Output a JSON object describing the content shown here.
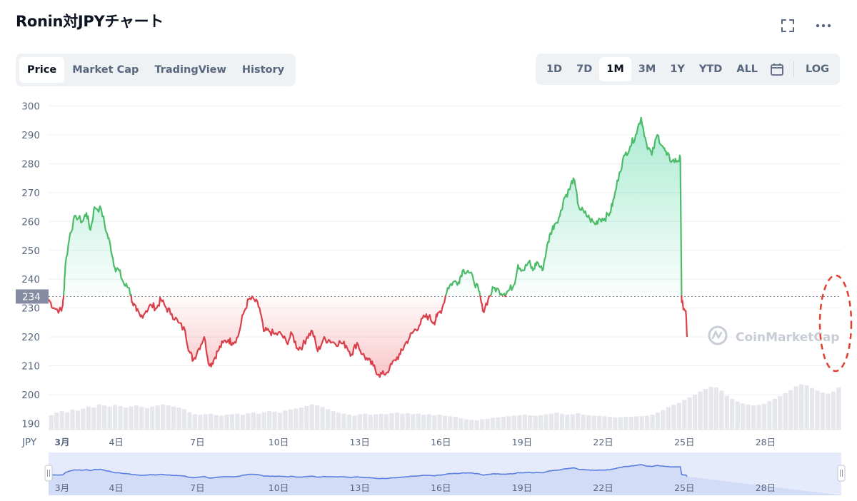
{
  "title": "Ronin対JPYチャート",
  "toolbar": {
    "fullscreen_icon": "expand-icon",
    "more_icon": "more-dots-icon"
  },
  "tabs": [
    {
      "label": "Price",
      "active": true
    },
    {
      "label": "Market Cap",
      "active": false
    },
    {
      "label": "TradingView",
      "active": false
    },
    {
      "label": "History",
      "active": false
    }
  ],
  "ranges": [
    {
      "label": "1D",
      "active": false
    },
    {
      "label": "7D",
      "active": false
    },
    {
      "label": "1M",
      "active": true
    },
    {
      "label": "3M",
      "active": false
    },
    {
      "label": "1Y",
      "active": false
    },
    {
      "label": "YTD",
      "active": false
    },
    {
      "label": "ALL",
      "active": false
    }
  ],
  "calendar_icon": "calendar-icon",
  "log_label": "LOG",
  "watermark": "CoinMarketCap",
  "colors": {
    "up": "#16c784",
    "down": "#ea3943",
    "line_up": "#4cbb6a",
    "line_down": "#d8404a",
    "nav_line": "#5b7fe0",
    "nav_fill": "#e6ebfb",
    "marker": "#e0402e",
    "baseline_label_bg": "#858ca2"
  },
  "chart_data": {
    "type": "line",
    "currency": "JPY",
    "ylabel": "JPY",
    "ylim": [
      188,
      302
    ],
    "yticks": [
      190,
      200,
      210,
      220,
      230,
      240,
      250,
      260,
      270,
      280,
      290,
      300
    ],
    "baseline": 234,
    "baseline_label": "234",
    "x_start_day": 1.5,
    "x_end_day": 30.8,
    "xticks": [
      {
        "day": 2.0,
        "label": "3月"
      },
      {
        "day": 4.0,
        "label": "4日"
      },
      {
        "day": 7.0,
        "label": "7日"
      },
      {
        "day": 10.0,
        "label": "10日"
      },
      {
        "day": 13.0,
        "label": "13日"
      },
      {
        "day": 16.0,
        "label": "16日"
      },
      {
        "day": 19.0,
        "label": "19日"
      },
      {
        "day": 22.0,
        "label": "22日"
      },
      {
        "day": 25.0,
        "label": "25日"
      },
      {
        "day": 28.0,
        "label": "28日"
      }
    ],
    "series": [
      {
        "points": [
          [
            1.5,
            233
          ],
          [
            1.7,
            230
          ],
          [
            1.98,
            229
          ],
          [
            2.05,
            233
          ],
          [
            2.12,
            245
          ],
          [
            2.3,
            256
          ],
          [
            2.5,
            262
          ],
          [
            2.75,
            260
          ],
          [
            2.9,
            263
          ],
          [
            3.05,
            257
          ],
          [
            3.2,
            265
          ],
          [
            3.45,
            264
          ],
          [
            3.65,
            256
          ],
          [
            3.78,
            252
          ],
          [
            3.95,
            244
          ],
          [
            4.1,
            243
          ],
          [
            4.3,
            238
          ],
          [
            4.48,
            237
          ],
          [
            4.6,
            232
          ],
          [
            4.75,
            229
          ],
          [
            4.9,
            227
          ],
          [
            5.1,
            229
          ],
          [
            5.3,
            231
          ],
          [
            5.5,
            230
          ],
          [
            5.65,
            233
          ],
          [
            5.85,
            230
          ],
          [
            6.05,
            228
          ],
          [
            6.3,
            225
          ],
          [
            6.55,
            222
          ],
          [
            6.7,
            215
          ],
          [
            6.85,
            212
          ],
          [
            7.05,
            216
          ],
          [
            7.25,
            220
          ],
          [
            7.45,
            210
          ],
          [
            7.6,
            212
          ],
          [
            7.75,
            215
          ],
          [
            7.95,
            218
          ],
          [
            8.15,
            219
          ],
          [
            8.3,
            218
          ],
          [
            8.5,
            220
          ],
          [
            8.7,
            228
          ],
          [
            8.9,
            233
          ],
          [
            9.1,
            233
          ],
          [
            9.3,
            230
          ],
          [
            9.45,
            222
          ],
          [
            9.65,
            222
          ],
          [
            9.85,
            221
          ],
          [
            10.1,
            221
          ],
          [
            10.3,
            218
          ],
          [
            10.5,
            221
          ],
          [
            10.7,
            216
          ],
          [
            10.9,
            217
          ],
          [
            11.05,
            220
          ],
          [
            11.25,
            222
          ],
          [
            11.45,
            215
          ],
          [
            11.65,
            219
          ],
          [
            11.85,
            219
          ],
          [
            12.05,
            218
          ],
          [
            12.3,
            218
          ],
          [
            12.5,
            217
          ],
          [
            12.7,
            214
          ],
          [
            12.9,
            218
          ],
          [
            13.1,
            214
          ],
          [
            13.3,
            212
          ],
          [
            13.5,
            210
          ],
          [
            13.7,
            207
          ],
          [
            13.9,
            207
          ],
          [
            14.1,
            209
          ],
          [
            14.3,
            212
          ],
          [
            14.5,
            214
          ],
          [
            14.65,
            217
          ],
          [
            14.85,
            220
          ],
          [
            15.0,
            222
          ],
          [
            15.2,
            224
          ],
          [
            15.4,
            227
          ],
          [
            15.55,
            227
          ],
          [
            15.75,
            225
          ],
          [
            15.85,
            227
          ],
          [
            16.05,
            230
          ],
          [
            16.25,
            237
          ],
          [
            16.45,
            239
          ],
          [
            16.65,
            239
          ],
          [
            16.8,
            243
          ],
          [
            17.0,
            243
          ],
          [
            17.2,
            240
          ],
          [
            17.4,
            236
          ],
          [
            17.55,
            229
          ],
          [
            17.75,
            233
          ],
          [
            17.95,
            237
          ],
          [
            18.15,
            236
          ],
          [
            18.35,
            235
          ],
          [
            18.5,
            236
          ],
          [
            18.7,
            238
          ],
          [
            18.85,
            245
          ],
          [
            19.05,
            243
          ],
          [
            19.25,
            246
          ],
          [
            19.4,
            243
          ],
          [
            19.55,
            246
          ],
          [
            19.75,
            243
          ],
          [
            19.9,
            250
          ],
          [
            20.05,
            256
          ],
          [
            20.2,
            259
          ],
          [
            20.4,
            262
          ],
          [
            20.55,
            268
          ],
          [
            20.75,
            271
          ],
          [
            20.9,
            275
          ],
          [
            21.1,
            265
          ],
          [
            21.3,
            263
          ],
          [
            21.5,
            261
          ],
          [
            21.7,
            259
          ],
          [
            21.85,
            261
          ],
          [
            22.05,
            261
          ],
          [
            22.25,
            263
          ],
          [
            22.4,
            268
          ],
          [
            22.6,
            277
          ],
          [
            22.8,
            283
          ],
          [
            23.0,
            286
          ],
          [
            23.2,
            290
          ],
          [
            23.4,
            296
          ],
          [
            23.6,
            287
          ],
          [
            23.8,
            283
          ],
          [
            24.0,
            290
          ],
          [
            24.2,
            286
          ],
          [
            24.35,
            283
          ],
          [
            24.55,
            281
          ],
          [
            24.75,
            281
          ],
          [
            24.85,
            282
          ],
          [
            24.9,
            232
          ],
          [
            25.05,
            229
          ],
          [
            25.1,
            220
          ]
        ]
      }
    ],
    "volume": [
      0.28,
      0.33,
      0.36,
      0.34,
      0.39,
      0.37,
      0.41,
      0.45,
      0.43,
      0.49,
      0.47,
      0.45,
      0.48,
      0.46,
      0.43,
      0.45,
      0.47,
      0.44,
      0.42,
      0.45,
      0.47,
      0.49,
      0.47,
      0.45,
      0.43,
      0.4,
      0.34,
      0.3,
      0.29,
      0.3,
      0.31,
      0.28,
      0.27,
      0.29,
      0.3,
      0.31,
      0.29,
      0.32,
      0.33,
      0.31,
      0.34,
      0.36,
      0.35,
      0.33,
      0.37,
      0.39,
      0.41,
      0.43,
      0.46,
      0.49,
      0.47,
      0.44,
      0.4,
      0.36,
      0.33,
      0.31,
      0.29,
      0.27,
      0.3,
      0.31,
      0.29,
      0.3,
      0.31,
      0.3,
      0.32,
      0.33,
      0.31,
      0.32,
      0.3,
      0.31,
      0.29,
      0.3,
      0.28,
      0.29,
      0.27,
      0.26,
      0.25,
      0.22,
      0.2,
      0.19,
      0.18,
      0.2,
      0.21,
      0.23,
      0.24,
      0.25,
      0.26,
      0.27,
      0.28,
      0.29,
      0.28,
      0.27,
      0.28,
      0.3,
      0.31,
      0.33,
      0.31,
      0.29,
      0.3,
      0.32,
      0.29,
      0.28,
      0.27,
      0.27,
      0.26,
      0.25,
      0.24,
      0.24,
      0.25,
      0.25,
      0.26,
      0.26,
      0.27,
      0.29,
      0.33,
      0.38,
      0.44,
      0.48,
      0.52,
      0.58,
      0.63,
      0.68,
      0.74,
      0.79,
      0.83,
      0.82,
      0.76,
      0.66,
      0.6,
      0.55,
      0.51,
      0.49,
      0.47,
      0.48,
      0.5,
      0.55,
      0.6,
      0.65,
      0.71,
      0.77,
      0.84,
      0.88,
      0.86,
      0.81,
      0.76,
      0.72,
      0.7,
      0.74,
      0.82
    ]
  }
}
